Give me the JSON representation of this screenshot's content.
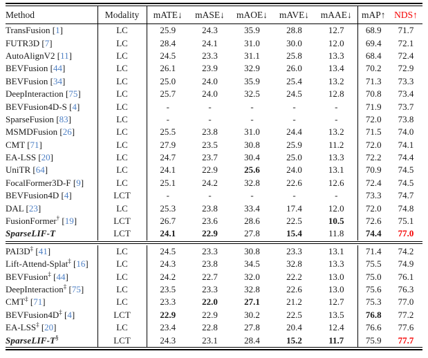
{
  "colors": {
    "ref_blue": "#4d7fc4",
    "highlight_red": "#f50000",
    "rule_black": "#000000"
  },
  "table": {
    "header": {
      "method": "Method",
      "modality": "Modality",
      "metrics": [
        "mATE↓",
        "mASE↓",
        "mAOE↓",
        "mAVE↓",
        "mAAE↓"
      ],
      "map": "mAP↑",
      "nds": "NDS↑"
    },
    "sections": [
      {
        "rows": [
          {
            "method": "TransFusion",
            "sup": "",
            "ref": "1",
            "emph": false,
            "modality": "LC",
            "cells": [
              {
                "t": "25.9"
              },
              {
                "t": "24.3"
              },
              {
                "t": "35.9"
              },
              {
                "t": "28.8"
              },
              {
                "t": "12.7"
              },
              {
                "t": "68.9"
              },
              {
                "t": "71.7"
              }
            ]
          },
          {
            "method": "FUTR3D",
            "sup": "",
            "ref": "7",
            "emph": false,
            "modality": "LC",
            "cells": [
              {
                "t": "28.4"
              },
              {
                "t": "24.1"
              },
              {
                "t": "31.0"
              },
              {
                "t": "30.0"
              },
              {
                "t": "12.0"
              },
              {
                "t": "69.4"
              },
              {
                "t": "72.1"
              }
            ]
          },
          {
            "method": "AutoAlignV2",
            "sup": "",
            "ref": "11",
            "emph": false,
            "modality": "LC",
            "cells": [
              {
                "t": "24.5"
              },
              {
                "t": "23.3"
              },
              {
                "t": "31.1"
              },
              {
                "t": "25.8"
              },
              {
                "t": "13.3"
              },
              {
                "t": "68.4"
              },
              {
                "t": "72.4"
              }
            ]
          },
          {
            "method": "BEVFusion",
            "sup": "",
            "ref": "44",
            "emph": false,
            "modality": "LC",
            "cells": [
              {
                "t": "26.1"
              },
              {
                "t": "23.9"
              },
              {
                "t": "32.9"
              },
              {
                "t": "26.0"
              },
              {
                "t": "13.4"
              },
              {
                "t": "70.2"
              },
              {
                "t": "72.9"
              }
            ]
          },
          {
            "method": "BEVFusion",
            "sup": "",
            "ref": "34",
            "emph": false,
            "modality": "LC",
            "cells": [
              {
                "t": "25.0"
              },
              {
                "t": "24.0"
              },
              {
                "t": "35.9"
              },
              {
                "t": "25.4"
              },
              {
                "t": "13.2"
              },
              {
                "t": "71.3"
              },
              {
                "t": "73.3"
              }
            ]
          },
          {
            "method": "DeepInteraction",
            "sup": "",
            "ref": "75",
            "emph": false,
            "modality": "LC",
            "cells": [
              {
                "t": "25.7"
              },
              {
                "t": "24.0"
              },
              {
                "t": "32.5"
              },
              {
                "t": "24.5"
              },
              {
                "t": "12.8"
              },
              {
                "t": "70.8"
              },
              {
                "t": "73.4"
              }
            ]
          },
          {
            "method": "BEVFusion4D-S",
            "sup": "",
            "ref": "4",
            "emph": false,
            "modality": "LC",
            "cells": [
              {
                "t": "-"
              },
              {
                "t": "-"
              },
              {
                "t": "-"
              },
              {
                "t": "-"
              },
              {
                "t": "-"
              },
              {
                "t": "71.9"
              },
              {
                "t": "73.7"
              }
            ]
          },
          {
            "method": "SparseFusion",
            "sup": "",
            "ref": "83",
            "emph": false,
            "modality": "LC",
            "cells": [
              {
                "t": "-"
              },
              {
                "t": "-"
              },
              {
                "t": "-"
              },
              {
                "t": "-"
              },
              {
                "t": "-"
              },
              {
                "t": "72.0"
              },
              {
                "t": "73.8"
              }
            ]
          },
          {
            "method": "MSMDFusion",
            "sup": "",
            "ref": "26",
            "emph": false,
            "modality": "LC",
            "cells": [
              {
                "t": "25.5"
              },
              {
                "t": "23.8"
              },
              {
                "t": "31.0"
              },
              {
                "t": "24.4"
              },
              {
                "t": "13.2"
              },
              {
                "t": "71.5"
              },
              {
                "t": "74.0"
              }
            ]
          },
          {
            "method": "CMT",
            "sup": "",
            "ref": "71",
            "emph": false,
            "modality": "LC",
            "cells": [
              {
                "t": "27.9"
              },
              {
                "t": "23.5"
              },
              {
                "t": "30.8"
              },
              {
                "t": "25.9"
              },
              {
                "t": "11.2"
              },
              {
                "t": "72.0"
              },
              {
                "t": "74.1"
              }
            ]
          },
          {
            "method": "EA-LSS",
            "sup": "",
            "ref": "20",
            "emph": false,
            "modality": "LC",
            "cells": [
              {
                "t": "24.7"
              },
              {
                "t": "23.7"
              },
              {
                "t": "30.4"
              },
              {
                "t": "25.0"
              },
              {
                "t": "13.3"
              },
              {
                "t": "72.2"
              },
              {
                "t": "74.4"
              }
            ]
          },
          {
            "method": "UniTR",
            "sup": "",
            "ref": "64",
            "emph": false,
            "modality": "LC",
            "cells": [
              {
                "t": "24.1"
              },
              {
                "t": "22.9"
              },
              {
                "t": "25.6",
                "b": true
              },
              {
                "t": "24.0"
              },
              {
                "t": "13.1"
              },
              {
                "t": "70.9"
              },
              {
                "t": "74.5"
              }
            ]
          },
          {
            "method": "FocalFormer3D-F",
            "sup": "",
            "ref": "9",
            "emph": false,
            "modality": "LC",
            "cells": [
              {
                "t": "25.1"
              },
              {
                "t": "24.2"
              },
              {
                "t": "32.8"
              },
              {
                "t": "22.6"
              },
              {
                "t": "12.6"
              },
              {
                "t": "72.4"
              },
              {
                "t": "74.5"
              }
            ]
          },
          {
            "method": "BEVFusion4D",
            "sup": "",
            "ref": "4",
            "emph": false,
            "modality": "LCT",
            "cells": [
              {
                "t": "-"
              },
              {
                "t": "-"
              },
              {
                "t": "-"
              },
              {
                "t": "-"
              },
              {
                "t": "-"
              },
              {
                "t": "73.3"
              },
              {
                "t": "74.7"
              }
            ]
          },
          {
            "method": "DAL",
            "sup": "",
            "ref": "23",
            "emph": false,
            "modality": "LC",
            "cells": [
              {
                "t": "25.3"
              },
              {
                "t": "23.8"
              },
              {
                "t": "33.4"
              },
              {
                "t": "17.4"
              },
              {
                "t": "12.0"
              },
              {
                "t": "72.0"
              },
              {
                "t": "74.8"
              }
            ]
          },
          {
            "method": "FusionFormer",
            "sup": "†",
            "ref": "19",
            "emph": false,
            "modality": "LCT",
            "cells": [
              {
                "t": "26.7"
              },
              {
                "t": "23.6"
              },
              {
                "t": "28.6"
              },
              {
                "t": "22.5"
              },
              {
                "t": "10.5",
                "b": true
              },
              {
                "t": "72.6"
              },
              {
                "t": "75.1"
              }
            ]
          },
          {
            "method": "SparseLIF-T",
            "sup": "",
            "ref": "",
            "emph": true,
            "modality": "LCT",
            "cells": [
              {
                "t": "24.1",
                "b": true
              },
              {
                "t": "22.9",
                "b": true
              },
              {
                "t": "27.8"
              },
              {
                "t": "15.4",
                "b": true
              },
              {
                "t": "11.8"
              },
              {
                "t": "74.4",
                "b": true
              },
              {
                "t": "77.0",
                "b": true,
                "r": true
              }
            ]
          }
        ]
      },
      {
        "rows": [
          {
            "method": "PAI3D",
            "sup": "‡",
            "ref": "41",
            "emph": false,
            "modality": "LC",
            "cells": [
              {
                "t": "24.5"
              },
              {
                "t": "23.3"
              },
              {
                "t": "30.8"
              },
              {
                "t": "23.3"
              },
              {
                "t": "13.1"
              },
              {
                "t": "71.4"
              },
              {
                "t": "74.2"
              }
            ]
          },
          {
            "method": "Lift-Attend-Splat",
            "sup": "‡",
            "ref": "16",
            "emph": false,
            "modality": "LC",
            "cells": [
              {
                "t": "24.3"
              },
              {
                "t": "23.8"
              },
              {
                "t": "34.5"
              },
              {
                "t": "32.8"
              },
              {
                "t": "13.3"
              },
              {
                "t": "75.5"
              },
              {
                "t": "74.9"
              }
            ]
          },
          {
            "method": "BEVFusion",
            "sup": "‡",
            "ref": "44",
            "emph": false,
            "modality": "LC",
            "cells": [
              {
                "t": "24.2"
              },
              {
                "t": "22.7"
              },
              {
                "t": "32.0"
              },
              {
                "t": "22.2"
              },
              {
                "t": "13.0"
              },
              {
                "t": "75.0"
              },
              {
                "t": "76.1"
              }
            ]
          },
          {
            "method": "DeepInteraction",
            "sup": "‡",
            "ref": "75",
            "emph": false,
            "modality": "LC",
            "cells": [
              {
                "t": "23.5"
              },
              {
                "t": "23.3"
              },
              {
                "t": "32.8"
              },
              {
                "t": "22.6"
              },
              {
                "t": "13.0"
              },
              {
                "t": "75.6"
              },
              {
                "t": "76.3"
              }
            ]
          },
          {
            "method": "CMT",
            "sup": "‡",
            "ref": "71",
            "emph": false,
            "modality": "LC",
            "cells": [
              {
                "t": "23.3"
              },
              {
                "t": "22.0",
                "b": true
              },
              {
                "t": "27.1",
                "b": true
              },
              {
                "t": "21.2"
              },
              {
                "t": "12.7"
              },
              {
                "t": "75.3"
              },
              {
                "t": "77.0"
              }
            ]
          },
          {
            "method": "BEVFusion4D",
            "sup": "‡",
            "ref": "4",
            "emph": false,
            "modality": "LCT",
            "cells": [
              {
                "t": "22.9",
                "b": true
              },
              {
                "t": "22.9"
              },
              {
                "t": "30.2"
              },
              {
                "t": "22.5"
              },
              {
                "t": "13.5"
              },
              {
                "t": "76.8",
                "b": true
              },
              {
                "t": "77.2"
              }
            ]
          },
          {
            "method": "EA-LSS",
            "sup": "‡",
            "ref": "20",
            "emph": false,
            "modality": "LC",
            "cells": [
              {
                "t": "23.4"
              },
              {
                "t": "22.8"
              },
              {
                "t": "27.8"
              },
              {
                "t": "20.4"
              },
              {
                "t": "12.4"
              },
              {
                "t": "76.6"
              },
              {
                "t": "77.6"
              }
            ]
          },
          {
            "method": "SparseLIF-T",
            "sup": "§",
            "ref": "",
            "emph": true,
            "modality": "LCT",
            "cells": [
              {
                "t": "24.3"
              },
              {
                "t": "23.1"
              },
              {
                "t": "28.4"
              },
              {
                "t": "15.2",
                "b": true
              },
              {
                "t": "11.7",
                "b": true
              },
              {
                "t": "75.9"
              },
              {
                "t": "77.7",
                "b": true,
                "r": true
              }
            ]
          }
        ]
      }
    ]
  }
}
